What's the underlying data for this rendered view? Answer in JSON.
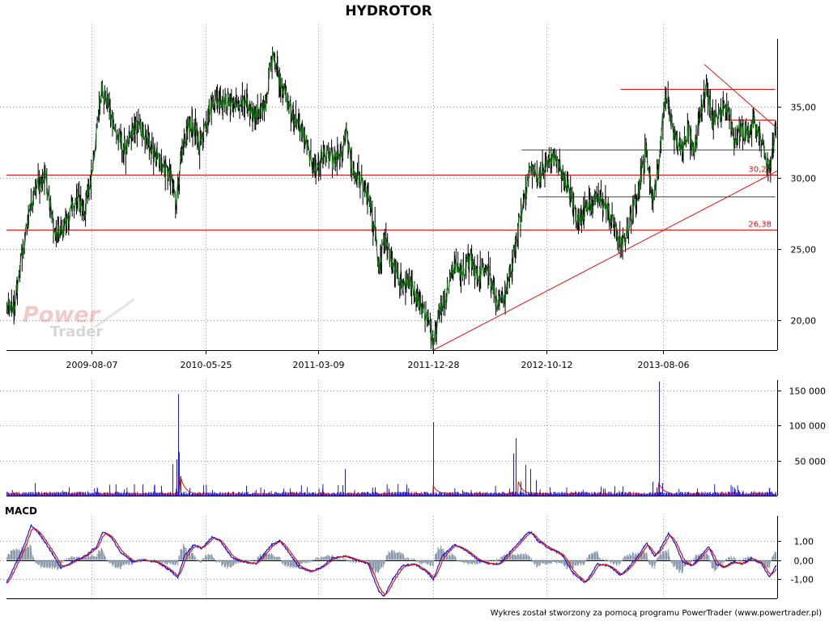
{
  "title": "HYDROTOR",
  "footer": "Wykres został stworzony za pomocą programu PowerTrader (www.powertrader.pl)",
  "watermark": {
    "line1": "Power",
    "line2": "Trader"
  },
  "colors": {
    "price_line": "#0a6a0a",
    "price_bar": "#000000",
    "support_line": "#e01010",
    "volume_bar": "#1a1ad8",
    "volume_avg": "#e01010",
    "macd_line": "#1a1ad8",
    "signal_line": "#e01010",
    "histogram": "#8a9aaa",
    "grid": "#9a9a9a",
    "axis": "#000000"
  },
  "chart_data": [
    {
      "type": "line",
      "name": "price",
      "title": "HYDROTOR",
      "x_ticks": [
        "2009-08-07",
        "2010-05-25",
        "2011-03-09",
        "2011-12-28",
        "2012-10-12",
        "2013-08-06"
      ],
      "y_ticks": [
        "20,00",
        "25,00",
        "30,00",
        "35,00"
      ],
      "ylim": [
        17.9,
        39.8
      ],
      "grid": true,
      "x_range": [
        "2009-01-01",
        "2014-05-25"
      ],
      "price_anchors": [
        [
          "2009-01-01",
          21.0
        ],
        [
          "2009-01-20",
          20.7
        ],
        [
          "2009-02-15",
          25.5
        ],
        [
          "2009-03-15",
          29.3
        ],
        [
          "2009-04-10",
          30.2
        ],
        [
          "2009-05-05",
          26.0
        ],
        [
          "2009-05-25",
          26.3
        ],
        [
          "2009-06-20",
          28.0
        ],
        [
          "2009-07-05",
          28.5
        ],
        [
          "2009-07-20",
          27.5
        ],
        [
          "2009-08-05",
          30.0
        ],
        [
          "2009-08-20",
          33.5
        ],
        [
          "2009-09-01",
          36.3
        ],
        [
          "2009-09-20",
          35.0
        ],
        [
          "2009-10-10",
          33.0
        ],
        [
          "2009-11-01",
          32.0
        ],
        [
          "2009-12-01",
          33.8
        ],
        [
          "2010-01-01",
          32.5
        ],
        [
          "2010-02-01",
          31.0
        ],
        [
          "2010-02-25",
          30.0
        ],
        [
          "2010-03-10",
          28.5
        ],
        [
          "2010-03-25",
          31.5
        ],
        [
          "2010-04-15",
          34.0
        ],
        [
          "2010-05-10",
          32.5
        ],
        [
          "2010-06-01",
          34.5
        ],
        [
          "2010-06-15",
          35.5
        ],
        [
          "2010-07-01",
          35.5
        ],
        [
          "2010-08-01",
          35.3
        ],
        [
          "2010-09-01",
          35.2
        ],
        [
          "2010-10-01",
          34.5
        ],
        [
          "2010-10-25",
          35.0
        ],
        [
          "2010-11-05",
          37.5
        ],
        [
          "2010-11-15",
          38.9
        ],
        [
          "2010-12-01",
          37.0
        ],
        [
          "2011-01-01",
          34.5
        ],
        [
          "2011-02-01",
          33.0
        ],
        [
          "2011-02-20",
          31.0
        ],
        [
          "2011-03-05",
          30.5
        ],
        [
          "2011-03-20",
          31.8
        ],
        [
          "2011-04-15",
          31.3
        ],
        [
          "2011-05-10",
          31.5
        ],
        [
          "2011-05-20",
          33.5
        ],
        [
          "2011-06-01",
          30.8
        ],
        [
          "2011-06-20",
          30.0
        ],
        [
          "2011-07-10",
          29.0
        ],
        [
          "2011-08-01",
          26.5
        ],
        [
          "2011-08-10",
          23.5
        ],
        [
          "2011-08-25",
          25.5
        ],
        [
          "2011-09-20",
          23.8
        ],
        [
          "2011-10-10",
          22.5
        ],
        [
          "2011-11-01",
          22.8
        ],
        [
          "2011-11-25",
          21.0
        ],
        [
          "2011-12-15",
          20.0
        ],
        [
          "2011-12-28",
          18.5
        ],
        [
          "2012-01-10",
          20.5
        ],
        [
          "2012-02-01",
          22.0
        ],
        [
          "2012-02-20",
          24.0
        ],
        [
          "2012-03-10",
          23.3
        ],
        [
          "2012-04-01",
          24.3
        ],
        [
          "2012-04-20",
          23.0
        ],
        [
          "2012-05-10",
          24.0
        ],
        [
          "2012-05-25",
          22.8
        ],
        [
          "2012-06-10",
          21.0
        ],
        [
          "2012-06-25",
          21.5
        ],
        [
          "2012-07-15",
          23.5
        ],
        [
          "2012-08-01",
          26.5
        ],
        [
          "2012-08-20",
          29.0
        ],
        [
          "2012-09-01",
          30.8
        ],
        [
          "2012-09-20",
          30.0
        ],
        [
          "2012-10-12",
          31.0
        ],
        [
          "2012-11-01",
          31.5
        ],
        [
          "2012-11-20",
          30.5
        ],
        [
          "2012-12-10",
          29.0
        ],
        [
          "2013-01-01",
          27.0
        ],
        [
          "2013-01-25",
          28.0
        ],
        [
          "2013-02-20",
          28.5
        ],
        [
          "2013-03-15",
          28.0
        ],
        [
          "2013-04-05",
          26.5
        ],
        [
          "2013-04-25",
          25.2
        ],
        [
          "2013-05-20",
          27.5
        ],
        [
          "2013-06-10",
          30.0
        ],
        [
          "2013-06-25",
          32.0
        ],
        [
          "2013-07-10",
          28.5
        ],
        [
          "2013-07-25",
          30.5
        ],
        [
          "2013-08-10",
          35.5
        ],
        [
          "2013-08-20",
          35.0
        ],
        [
          "2013-09-05",
          33.0
        ],
        [
          "2013-09-20",
          32.0
        ],
        [
          "2013-10-10",
          33.5
        ],
        [
          "2013-10-25",
          32.0
        ],
        [
          "2013-11-10",
          34.5
        ],
        [
          "2013-11-25",
          36.8
        ],
        [
          "2013-12-10",
          34.0
        ],
        [
          "2014-01-01",
          34.5
        ],
        [
          "2014-01-20",
          35.0
        ],
        [
          "2014-02-05",
          32.5
        ],
        [
          "2014-02-20",
          33.5
        ],
        [
          "2014-03-10",
          33.0
        ],
        [
          "2014-03-25",
          34.0
        ],
        [
          "2014-04-10",
          33.0
        ],
        [
          "2014-04-25",
          31.5
        ],
        [
          "2014-05-05",
          30.5
        ],
        [
          "2014-05-15",
          32.0
        ],
        [
          "2014-05-22",
          33.5
        ]
      ],
      "horizontal_levels": [
        {
          "value": 30.26,
          "label": "30,26",
          "from": "2009-01-01",
          "to": "2014-05-25"
        },
        {
          "value": 26.38,
          "label": "26,38",
          "from": "2009-01-01",
          "to": "2014-05-25"
        },
        {
          "value": 36.3,
          "label": "",
          "from": "2013-04-20",
          "to": "2014-05-20"
        },
        {
          "value": 34.1,
          "label": "",
          "from": "2014-01-10",
          "to": "2014-05-20"
        },
        {
          "value": 32.0,
          "label": "",
          "from": "2012-08-10",
          "to": "2014-05-20"
        },
        {
          "value": 28.7,
          "label": "",
          "from": "2012-09-20",
          "to": "2014-05-20"
        }
      ],
      "trend_lines": [
        {
          "from": [
            "2011-12-28",
            17.9
          ],
          "to": [
            "2014-05-25",
            30.5
          ]
        },
        {
          "from": [
            "2013-11-20",
            38.0
          ],
          "to": [
            "2014-05-25",
            33.5
          ]
        }
      ]
    },
    {
      "type": "bar",
      "name": "volume",
      "y_ticks": [
        "50 000",
        "100 000",
        "150 000"
      ],
      "ylim": [
        0,
        165000
      ],
      "grid": true,
      "base_level": 3000,
      "spikes": [
        [
          "2009-03-15",
          18000
        ],
        [
          "2009-06-10",
          12000
        ],
        [
          "2009-08-20",
          10000
        ],
        [
          "2009-12-15",
          16000
        ],
        [
          "2010-02-01",
          14000
        ],
        [
          "2010-03-01",
          45000
        ],
        [
          "2010-03-12",
          52000
        ],
        [
          "2010-03-15",
          145000
        ],
        [
          "2010-03-18",
          62000
        ],
        [
          "2010-03-22",
          28000
        ],
        [
          "2010-06-10",
          8000
        ],
        [
          "2010-09-05",
          14000
        ],
        [
          "2010-12-10",
          10000
        ],
        [
          "2011-03-20",
          10000
        ],
        [
          "2011-05-10",
          15000
        ],
        [
          "2011-05-15",
          38000
        ],
        [
          "2011-08-01",
          12000
        ],
        [
          "2011-10-20",
          16000
        ],
        [
          "2011-12-28",
          105000
        ],
        [
          "2012-03-10",
          8000
        ],
        [
          "2012-07-10",
          10000
        ],
        [
          "2012-07-20",
          60000
        ],
        [
          "2012-07-25",
          82000
        ],
        [
          "2012-08-08",
          20000
        ],
        [
          "2012-08-20",
          44000
        ],
        [
          "2012-09-01",
          38000
        ],
        [
          "2012-09-15",
          22000
        ],
        [
          "2012-10-20",
          12000
        ],
        [
          "2013-03-10",
          10000
        ],
        [
          "2013-07-10",
          20000
        ],
        [
          "2013-07-20",
          12000
        ],
        [
          "2013-07-26",
          163000
        ],
        [
          "2013-08-05",
          18000
        ],
        [
          "2013-11-01",
          10000
        ],
        [
          "2014-02-15",
          8000
        ]
      ],
      "avg_bumps": [
        [
          "2010-03-20",
          30000
        ],
        [
          "2011-12-28",
          12000
        ],
        [
          "2012-08-01",
          18000
        ],
        [
          "2013-07-26",
          16000
        ]
      ]
    },
    {
      "type": "line",
      "name": "MACD",
      "title": "MACD",
      "y_ticks": [
        "1,00",
        "0,00",
        "-1,00"
      ],
      "ylim": [
        -2.0,
        2.3
      ],
      "grid": true,
      "macd_anchors": [
        [
          "2009-01-01",
          -1.2
        ],
        [
          "2009-02-10",
          0.5
        ],
        [
          "2009-03-05",
          1.8
        ],
        [
          "2009-03-25",
          1.4
        ],
        [
          "2009-04-20",
          0.6
        ],
        [
          "2009-05-20",
          -0.4
        ],
        [
          "2009-06-20",
          -0.1
        ],
        [
          "2009-07-20",
          0.2
        ],
        [
          "2009-08-20",
          0.7
        ],
        [
          "2009-09-05",
          1.5
        ],
        [
          "2009-09-25",
          1.2
        ],
        [
          "2009-10-20",
          0.4
        ],
        [
          "2009-11-20",
          -0.1
        ],
        [
          "2009-12-20",
          0.0
        ],
        [
          "2010-01-20",
          -0.1
        ],
        [
          "2010-02-20",
          -0.5
        ],
        [
          "2010-03-15",
          -0.9
        ],
        [
          "2010-04-01",
          0.2
        ],
        [
          "2010-04-25",
          0.8
        ],
        [
          "2010-05-15",
          0.6
        ],
        [
          "2010-06-10",
          1.2
        ],
        [
          "2010-07-01",
          1.0
        ],
        [
          "2010-08-01",
          0.1
        ],
        [
          "2010-09-01",
          -0.1
        ],
        [
          "2010-10-01",
          -0.2
        ],
        [
          "2010-11-10",
          0.8
        ],
        [
          "2010-12-01",
          1.0
        ],
        [
          "2010-12-20",
          0.5
        ],
        [
          "2011-01-20",
          -0.4
        ],
        [
          "2011-02-20",
          -0.6
        ],
        [
          "2011-03-15",
          -0.4
        ],
        [
          "2011-04-15",
          0.1
        ],
        [
          "2011-05-20",
          0.2
        ],
        [
          "2011-06-15",
          0.0
        ],
        [
          "2011-07-15",
          -0.2
        ],
        [
          "2011-08-10",
          -1.6
        ],
        [
          "2011-08-25",
          -1.9
        ],
        [
          "2011-09-15",
          -1.0
        ],
        [
          "2011-10-10",
          -0.3
        ],
        [
          "2011-11-10",
          -0.2
        ],
        [
          "2011-12-10",
          -0.6
        ],
        [
          "2011-12-28",
          -1.0
        ],
        [
          "2012-01-20",
          0.2
        ],
        [
          "2012-02-20",
          0.8
        ],
        [
          "2012-03-20",
          0.5
        ],
        [
          "2012-04-20",
          0.0
        ],
        [
          "2012-05-20",
          -0.2
        ],
        [
          "2012-06-15",
          -0.2
        ],
        [
          "2012-07-15",
          0.5
        ],
        [
          "2012-08-20",
          1.3
        ],
        [
          "2012-09-01",
          1.5
        ],
        [
          "2012-09-20",
          1.0
        ],
        [
          "2012-10-20",
          0.6
        ],
        [
          "2012-11-20",
          0.3
        ],
        [
          "2012-12-20",
          -0.7
        ],
        [
          "2013-01-20",
          -1.2
        ],
        [
          "2013-02-20",
          -0.2
        ],
        [
          "2013-03-20",
          -0.3
        ],
        [
          "2013-04-20",
          -0.8
        ],
        [
          "2013-05-10",
          -0.4
        ],
        [
          "2013-06-10",
          0.4
        ],
        [
          "2013-06-25",
          0.9
        ],
        [
          "2013-07-15",
          0.2
        ],
        [
          "2013-07-25",
          0.4
        ],
        [
          "2013-08-20",
          1.4
        ],
        [
          "2013-09-05",
          0.9
        ],
        [
          "2013-09-25",
          -0.1
        ],
        [
          "2013-10-20",
          -0.3
        ],
        [
          "2013-11-10",
          0.2
        ],
        [
          "2013-12-01",
          0.7
        ],
        [
          "2013-12-20",
          -0.2
        ],
        [
          "2014-01-10",
          -0.4
        ],
        [
          "2014-02-01",
          -0.1
        ],
        [
          "2014-02-25",
          -0.2
        ],
        [
          "2014-03-20",
          0.1
        ],
        [
          "2014-04-15",
          -0.2
        ],
        [
          "2014-05-05",
          -0.9
        ],
        [
          "2014-05-22",
          -0.3
        ]
      ]
    }
  ]
}
